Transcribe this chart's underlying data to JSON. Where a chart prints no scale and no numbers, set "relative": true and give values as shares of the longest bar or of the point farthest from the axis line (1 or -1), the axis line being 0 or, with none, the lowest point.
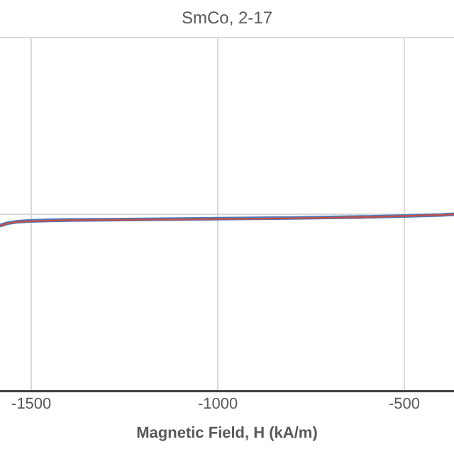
{
  "chart_data": {
    "type": "line",
    "title": "SmCo, 2-17",
    "xlabel": "Magnetic Field, H (kA/m)",
    "relative": true,
    "x": [
      -1584,
      -1570,
      -1562,
      -1540,
      -1500,
      -1450,
      -1400,
      -1300,
      -1200,
      -1100,
      -1000,
      -900,
      -800,
      -700,
      -600,
      -500,
      -450,
      -400,
      -367
    ],
    "series": [
      {
        "color": "#4a7ebb",
        "values": [
          0.936,
          0.945,
          0.95,
          0.957,
          0.962,
          0.965,
          0.967,
          0.969,
          0.971,
          0.973,
          0.975,
          0.977,
          0.979,
          0.982,
          0.985,
          0.99,
          0.993,
          0.996,
          1
        ]
      },
      {
        "color": "#c0504d",
        "values": [
          0.934,
          0.944,
          0.949,
          0.956,
          0.961,
          0.964,
          0.966,
          0.968,
          0.97,
          0.971,
          0.973,
          0.975,
          0.977,
          0.98,
          0.984,
          0.99,
          0.993,
          0.996,
          1
        ]
      }
    ],
    "xlim": [
      -1584,
      -367
    ],
    "xticks": [
      -1500,
      -1000,
      -500
    ],
    "grid": true,
    "legend": false,
    "marker": "none",
    "line_style": "solid"
  }
}
